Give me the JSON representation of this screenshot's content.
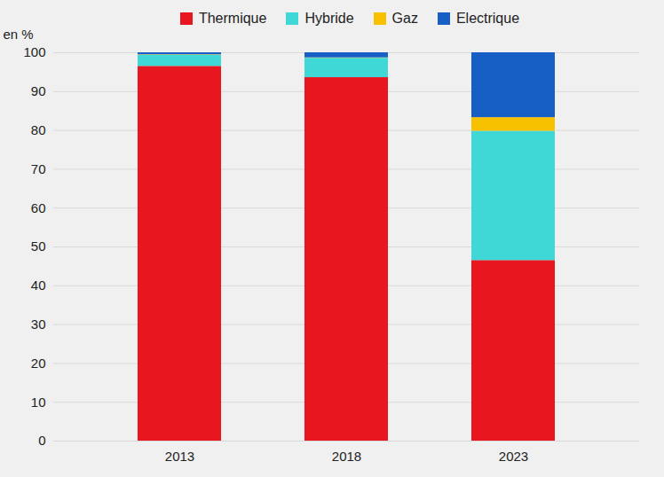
{
  "chart_data": {
    "type": "bar",
    "stacked": true,
    "legend": "top",
    "grid": true,
    "categories": [
      "2013",
      "2018",
      "2023"
    ],
    "ylabel": "en %",
    "ylim": [
      0,
      100
    ],
    "yticks": [
      0,
      10,
      20,
      30,
      40,
      50,
      60,
      70,
      80,
      90,
      100
    ],
    "series": [
      {
        "name": "Thermique",
        "color": "#e8171f",
        "values": [
          96.5,
          93.6,
          46.5
        ]
      },
      {
        "name": "Hybride",
        "color": "#3fd8d6",
        "values": [
          2.9,
          5.0,
          33.3
        ]
      },
      {
        "name": "Gaz",
        "color": "#f8c100",
        "values": [
          0.1,
          0.1,
          3.5
        ]
      },
      {
        "name": "Electrique",
        "color": "#175fc4",
        "values": [
          0.5,
          1.3,
          16.7
        ]
      }
    ]
  }
}
